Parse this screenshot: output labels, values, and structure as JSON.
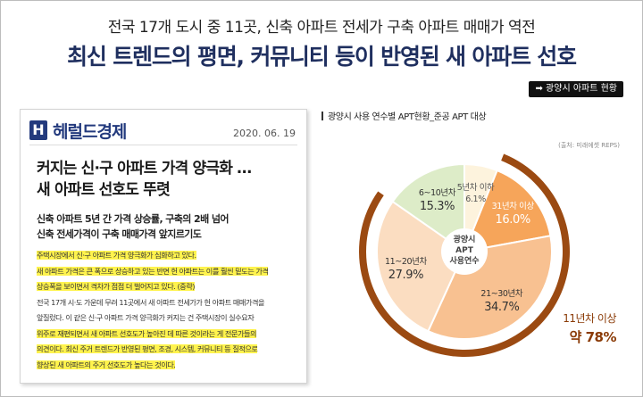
{
  "header": {
    "subtitle": "전국 17개 도시 중 11곳, 신축 아파트 전세가 구축 아파트 매매가 역전",
    "headline": "최신 트렌드의 평면, 커뮤니티 등이 반영된 새 아파트 선호",
    "tag": "➡ 광양시 아파트 현황"
  },
  "article": {
    "logo_mark": "H",
    "logo_text": "헤럴드경제",
    "date": "2020. 06. 19",
    "title_lines": [
      "커지는 신·구 아파트 가격 양극화 …",
      "새 아파트 선호도 뚜렷"
    ],
    "sub_lines": [
      "신축 아파트 5년 간 가격 상승률, 구축의 2배 넘어",
      "신축 전세가격이 구축 매매가격 앞지르기도"
    ],
    "body_lines": [
      "주택시장에서 신·구 아파트 가격 양극화가 심화하고 있다.",
      "새 아파트 가격은 큰 폭으로 상승하고 있는 반면 헌 아파트는 이를 훨씬 밑도는 가격",
      "상승폭을 보이면서 격차가 점점 더 벌어지고 있다. (중략)",
      "전국 17개 시·도 가운데 무려 11곳에서 새 아파트 전세가가 헌 아파트 매매가격을",
      "앞질렀다. 이 같은 신·구 아파트 가격 양극화가 커지는 건 주택시장이 실수요자",
      "위주로 재편되면서 새 아파트 선호도가 높아진 데 따른 것이라는 게 전문가들의",
      "의견이다. 최신 주거 트렌드가 반영된 평면, 조경, 시스템, 커뮤니티 등 질적으로",
      "향상된 새 아파트의 주거 선호도가 높다는 것이다."
    ]
  },
  "chart_data": {
    "type": "pie",
    "title": "광양시 사용 연수별 APT현황_준공 APT 대상",
    "source": "(출처: 미래에셋 REPS)",
    "center_label": [
      "광양시",
      "APT",
      "사용연수"
    ],
    "categories": [
      "5년차 이하",
      "31년차 이상",
      "21~30년차",
      "11~20년차",
      "6~10년차"
    ],
    "values": [
      6.1,
      16.0,
      34.7,
      27.9,
      15.3
    ],
    "value_labels": [
      "6.1%",
      "16.0%",
      "34.7%",
      "27.9%",
      "15.3%"
    ],
    "group_highlight": {
      "label": "11년차 이상",
      "value": 78,
      "value_label": "약 78%"
    },
    "colors": {
      "slice_0": "#fdf3dd",
      "slice_1": "#f6a55a",
      "slice_2": "#f8c191",
      "slice_3": "#fbddc1",
      "slice_4": "#ddecc8",
      "outer_arc": "#9b4a12"
    }
  }
}
